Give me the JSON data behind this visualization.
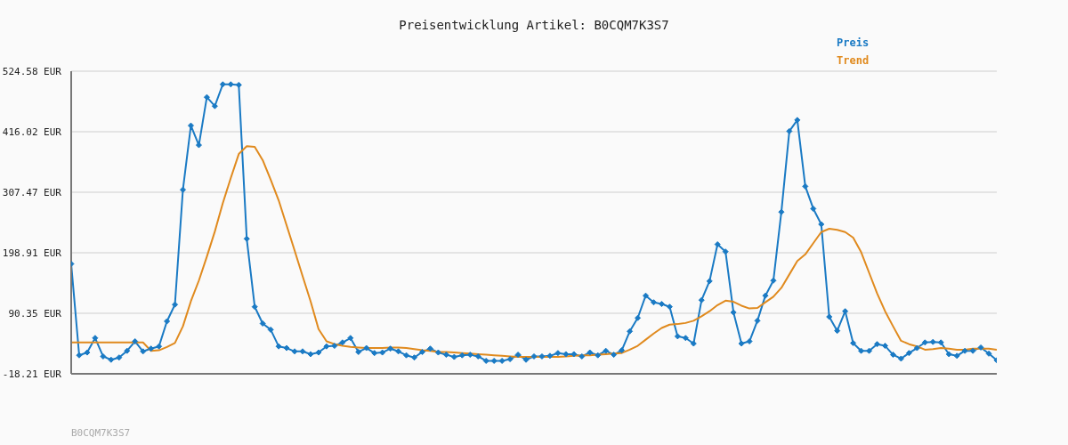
{
  "chart_data": {
    "type": "line",
    "title": "Preisentwicklung Artikel: B0CQM7K3S7",
    "annotations": [
      "B0CQM7K3S7"
    ],
    "categories": [
      null,
      null,
      null,
      null,
      null,
      null,
      null,
      null,
      null,
      null,
      null,
      null,
      null,
      null,
      null,
      null,
      null,
      null,
      null,
      null,
      null,
      null,
      null,
      null,
      null,
      null,
      null,
      null,
      null,
      null,
      null,
      null,
      null,
      null,
      null,
      null,
      null,
      null,
      null,
      null,
      null,
      null,
      null,
      null,
      null,
      null,
      null,
      null,
      null,
      null,
      null,
      null,
      null,
      null,
      null,
      null,
      null,
      null,
      null,
      null,
      null,
      null,
      null,
      null,
      null,
      null,
      null,
      null,
      null,
      null,
      null,
      null,
      null,
      null,
      null,
      null,
      null,
      null,
      null,
      null,
      null,
      null,
      null,
      null,
      null,
      null,
      null,
      null,
      null,
      null,
      null,
      null,
      null,
      null,
      null,
      null,
      null,
      null,
      null,
      null,
      null,
      null,
      null,
      null,
      null,
      null,
      null,
      null,
      null,
      null,
      null,
      null,
      null,
      null,
      null,
      null,
      null
    ],
    "series": [
      {
        "name": "Preis",
        "color": "#1a7ac4",
        "marker": "diamond",
        "values": [
          179,
          15,
          20,
          46,
          13,
          7,
          11,
          23,
          40,
          22,
          27,
          31,
          76,
          106,
          312,
          427,
          392,
          478,
          462,
          501,
          501,
          500,
          224,
          102,
          72,
          61,
          31,
          28,
          22,
          22,
          17,
          20,
          31,
          32,
          38,
          46,
          21,
          28,
          19,
          20,
          27,
          22,
          15,
          11,
          21,
          27,
          20,
          16,
          12,
          15,
          16,
          13,
          5,
          5,
          5,
          8,
          16,
          7,
          13,
          13,
          14,
          19,
          17,
          17,
          13,
          20,
          15,
          23,
          16,
          24,
          58,
          82,
          122,
          110,
          107,
          102,
          49,
          46,
          36,
          114,
          148,
          214,
          201,
          92,
          36,
          40,
          77,
          122,
          149,
          272,
          417,
          437,
          318,
          278,
          250,
          84,
          59,
          94,
          37,
          23,
          23,
          35,
          32,
          16,
          9,
          19,
          28,
          38,
          39,
          38,
          17,
          14,
          23,
          23,
          29,
          18,
          6
        ]
      },
      {
        "name": "Trend",
        "color": "#e08a1e",
        "marker": "none",
        "values": [
          38,
          38,
          38,
          38,
          38,
          38,
          38,
          38,
          38,
          38,
          23,
          24,
          30,
          37,
          67,
          112,
          149,
          192,
          237,
          288,
          333,
          376,
          390,
          389,
          365,
          330,
          293,
          248,
          203,
          157,
          112,
          62,
          40,
          35,
          32,
          30,
          29,
          28,
          28,
          28,
          29,
          29,
          28,
          26,
          24,
          23,
          21,
          21,
          20,
          19,
          18,
          17,
          16,
          15,
          14,
          13,
          12,
          12,
          12,
          12,
          12,
          12,
          13,
          14,
          15,
          15,
          16,
          17,
          18,
          19,
          25,
          32,
          43,
          54,
          64,
          70,
          71,
          73,
          77,
          85,
          94,
          105,
          113,
          111,
          104,
          99,
          100,
          110,
          120,
          136,
          160,
          184,
          196,
          216,
          236,
          242,
          240,
          236,
          226,
          200,
          163,
          126,
          94,
          67,
          41,
          35,
          31,
          25,
          26,
          28,
          27,
          25,
          25,
          27,
          27,
          27,
          25
        ]
      }
    ],
    "ylim": [
      -18.21,
      524.58
    ],
    "yticks": [
      {
        "value": -18.21,
        "label": "-18.21 EUR"
      },
      {
        "value": 90.35,
        "label": "90.35 EUR"
      },
      {
        "value": 198.91,
        "label": "198.91 EUR"
      },
      {
        "value": 307.47,
        "label": "307.47 EUR"
      },
      {
        "value": 416.02,
        "label": "416.02 EUR"
      },
      {
        "value": 524.58,
        "label": "524.58 EUR"
      }
    ],
    "grid": "y",
    "legend": "top right",
    "tick_labels": "y",
    "line_style": "solid"
  }
}
